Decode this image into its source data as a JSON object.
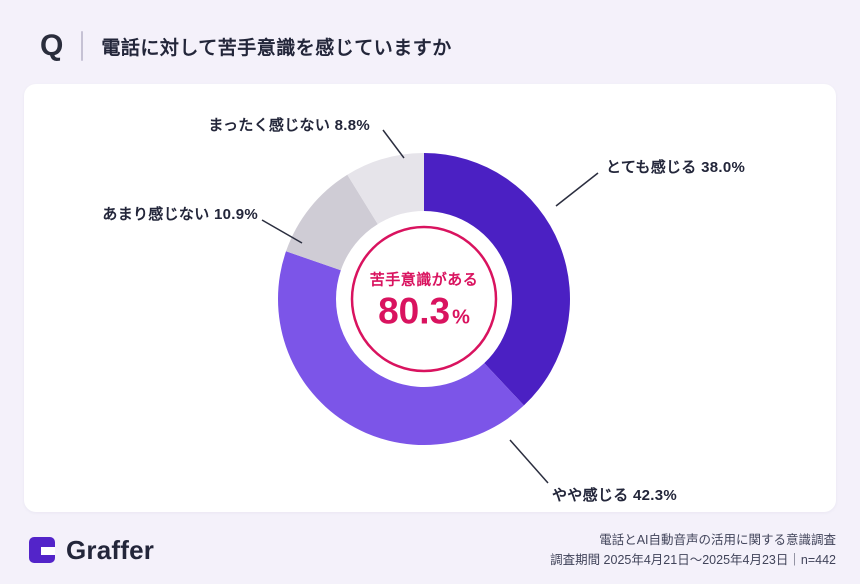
{
  "header": {
    "q": "Q",
    "title": "電話に対して苦手意識を感じていますか"
  },
  "chart_data": {
    "type": "pie",
    "donut": true,
    "title": "電話に対して苦手意識を感じていますか",
    "categories": [
      "とても感じる",
      "やや感じる",
      "あまり感じない",
      "まったく感じない"
    ],
    "values": [
      38.0,
      42.3,
      10.9,
      8.8
    ],
    "labels": [
      "とても感じる 38.0%",
      "やや感じる 42.3%",
      "あまり感じない 10.9%",
      "まったく感じない 8.8%"
    ],
    "colors": [
      "#4b20c3",
      "#7c55e8",
      "#cfccd5",
      "#e6e4ea"
    ],
    "start_angle": 0,
    "direction": "clockwise",
    "legend_position": "labels-with-leader-lines",
    "center": {
      "caption": "苦手意識がある",
      "value": "80.3",
      "unit": "%",
      "color": "#d9135f"
    }
  },
  "footer": {
    "brand": "Graffer",
    "logo_icon": "graffer-logo-icon",
    "brand_color": "#5324c9",
    "survey_title": "電話とAI自動音声の活用に関する意識調査",
    "survey_period": "調査期間 2025年4月21日〜2025年4月23日｜n=442"
  }
}
